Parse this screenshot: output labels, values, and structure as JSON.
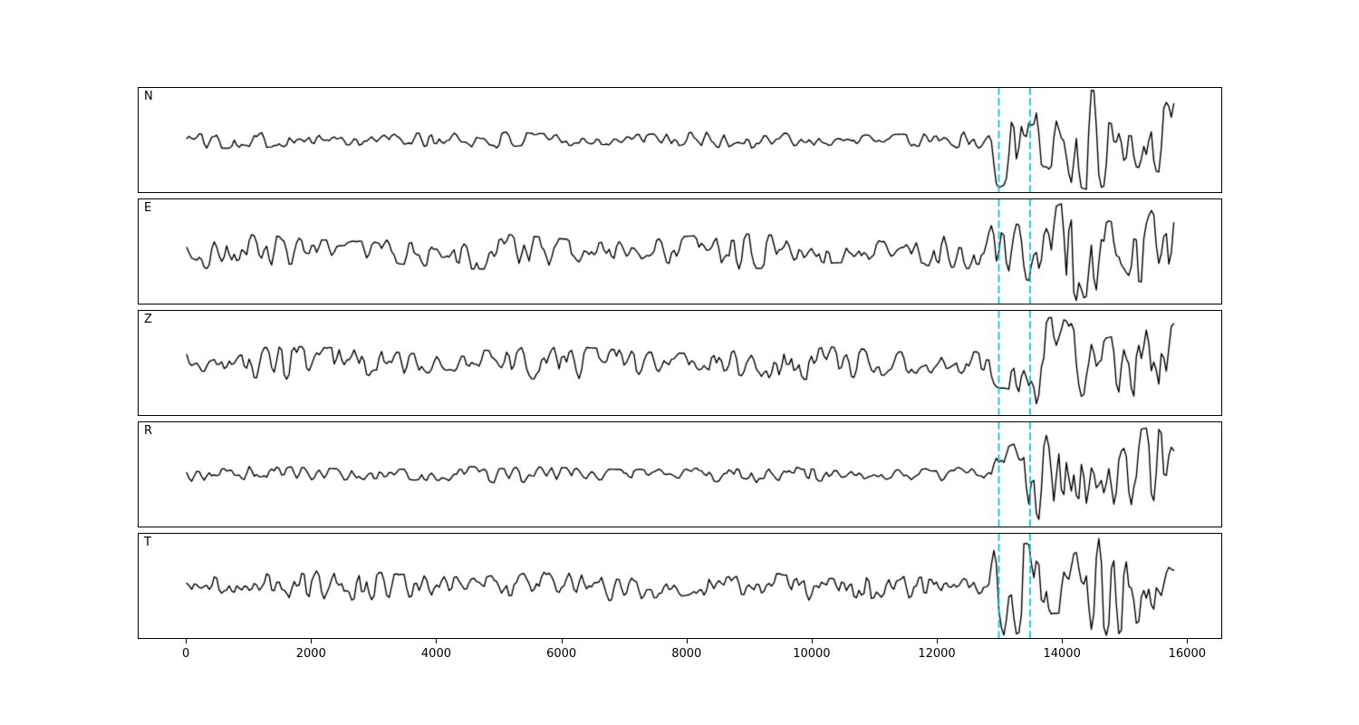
{
  "figure": {
    "background": "#ffffff"
  },
  "chart_data": {
    "type": "line",
    "title": "",
    "xlabel": "",
    "ylabel": "",
    "grid": false,
    "legend": null,
    "description": "Five stacked seismogram component traces (N, E, Z, R, T) of black band-limited noise with a higher-amplitude event arrival near x=12800 that continues to the end of the record; two cyan dashed vertical pick lines mark x=13000 and x=13500 on every panel.",
    "panels": [
      {
        "label": "N",
        "noise_amp": 0.14,
        "event_amp": 0.85,
        "seed": 101
      },
      {
        "label": "E",
        "noise_amp": 0.3,
        "event_amp": 0.85,
        "seed": 202
      },
      {
        "label": "Z",
        "noise_amp": 0.28,
        "event_amp": 0.78,
        "seed": 303
      },
      {
        "label": "R",
        "noise_amp": 0.14,
        "event_amp": 0.8,
        "seed": 404
      },
      {
        "label": "T",
        "noise_amp": 0.26,
        "event_amp": 0.85,
        "seed": 505
      }
    ],
    "x_ticks": [
      0,
      2000,
      4000,
      6000,
      8000,
      10000,
      12000,
      14000,
      16000
    ],
    "x_tick_labels": [
      "0",
      "2000",
      "4000",
      "6000",
      "8000",
      "10000",
      "12000",
      "14000",
      "16000"
    ],
    "xlim": [
      -770,
      16560
    ],
    "data_x_start": 0,
    "data_x_end": 15800,
    "sample_dx": 40,
    "event_start": 12800,
    "vlines": [
      13000,
      13500
    ],
    "vline_color": "#17becf",
    "vline_style": "dashed",
    "trace_color": "#000000"
  }
}
